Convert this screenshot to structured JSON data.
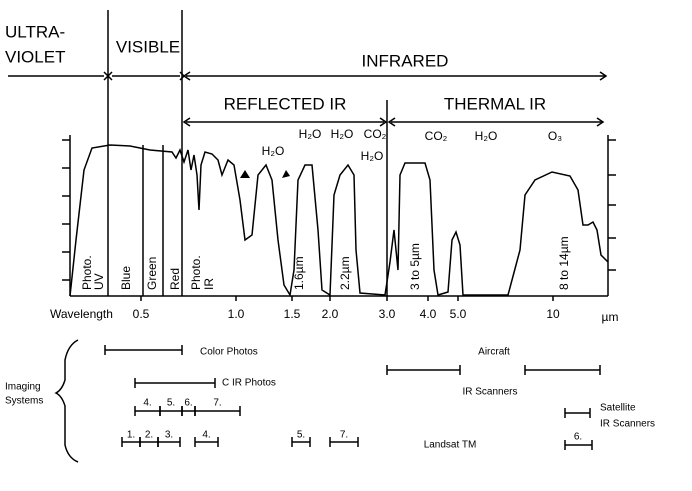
{
  "header": {
    "ultraviolet": [
      "ULTRA-",
      "VIOLET"
    ],
    "visible": "VISIBLE",
    "infrared": "INFRARED",
    "reflected_ir": "REFLECTED IR",
    "thermal_ir": "THERMAL IR"
  },
  "absorption": [
    "H₂O",
    "H₂O",
    "H₂O",
    "CO₂",
    "H₂O",
    "CO₂",
    "H₂O",
    "O₃"
  ],
  "bands": [
    [
      "Photo.",
      "UV"
    ],
    [
      "Blue"
    ],
    [
      "Green"
    ],
    [
      "Red"
    ],
    [
      "Photo.",
      "IR"
    ],
    [
      "1.6µm"
    ],
    [
      "2.2µm"
    ],
    [
      "3 to 5µm"
    ],
    [
      "8 to 14µm"
    ]
  ],
  "axis": {
    "title": "Wavelength",
    "ticks": [
      "0.5",
      "1.0",
      "1.5",
      "2.0",
      "3.0",
      "4.0",
      "5.0",
      "10"
    ],
    "unit": "µm"
  },
  "systems": {
    "title": [
      "Imaging",
      "Systems"
    ],
    "ranges": [
      "Color Photos",
      "C IR Photos",
      "Landsat TM",
      "Aircraft",
      "IR Scanners",
      "Satellite",
      "IR Scanners"
    ],
    "bands_row1": [
      "4.",
      "5.",
      "6.",
      "7."
    ],
    "bands_row2": [
      "1.",
      "2.",
      "3.",
      "4.",
      "5.",
      "7."
    ],
    "satellite_band": "6."
  }
}
